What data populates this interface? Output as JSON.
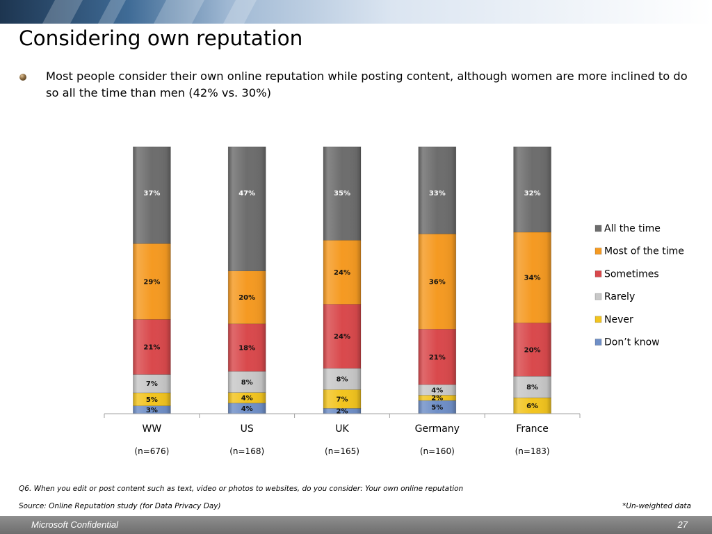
{
  "slide": {
    "title": "Considering own reputation",
    "bullet": "Most people consider their own online reputation while posting content, although women are more inclined to do so all the time than men (42% vs. 30%)",
    "footnote_question": "Q6. When you edit or post content such as text, video or photos to websites, do you  consider: Your own online reputation",
    "footnote_source": "Source: Online Reputation study (for Data Privacy Day)",
    "footnote_unweighted": "*Un-weighted data",
    "footer_label": "Microsoft Confidential",
    "page_number": "27"
  },
  "chart_data": {
    "type": "bar",
    "stacked": true,
    "percent_scale": true,
    "categories": [
      "WW",
      "US",
      "UK",
      "Germany",
      "France"
    ],
    "category_sublabels": [
      "(n=676)",
      "(n=168)",
      "(n=165)",
      "(n=160)",
      "(n=183)"
    ],
    "series": [
      {
        "name": "Don’t know",
        "values": [
          3,
          4,
          2,
          5,
          0
        ],
        "labels": [
          "3%",
          "4%",
          "2%",
          "5%",
          ""
        ],
        "color": "#6f8fc7"
      },
      {
        "name": "Never",
        "values": [
          5,
          4,
          7,
          2,
          6
        ],
        "labels": [
          "5%",
          "4%",
          "7%",
          "2%",
          "6%"
        ],
        "color": "#f2c41f"
      },
      {
        "name": "Rarely",
        "values": [
          7,
          8,
          8,
          4,
          8
        ],
        "labels": [
          "7%",
          "8%",
          "8%",
          "4%",
          "8%"
        ],
        "color": "#c8c8c8"
      },
      {
        "name": "Sometimes",
        "values": [
          21,
          18,
          24,
          21,
          20
        ],
        "labels": [
          "21%",
          "18%",
          "24%",
          "21%",
          "20%"
        ],
        "color": "#d9494c"
      },
      {
        "name": "Most of the time",
        "values": [
          29,
          20,
          24,
          36,
          34
        ],
        "labels": [
          "29%",
          "20%",
          "24%",
          "36%",
          "34%"
        ],
        "color": "#f59a22"
      },
      {
        "name": "All the time",
        "values": [
          37,
          47,
          35,
          33,
          32
        ],
        "labels": [
          "37%",
          "47%",
          "35%",
          "33%",
          "32%"
        ],
        "color": "#6d6d6d"
      }
    ],
    "legend_order": [
      "All the time",
      "Most of the time",
      "Sometimes",
      "Rarely",
      "Never",
      "Don’t know"
    ],
    "legend_position": "right",
    "grid": false,
    "ylim": [
      0,
      100
    ],
    "xlabel": "",
    "ylabel": "",
    "title": ""
  }
}
